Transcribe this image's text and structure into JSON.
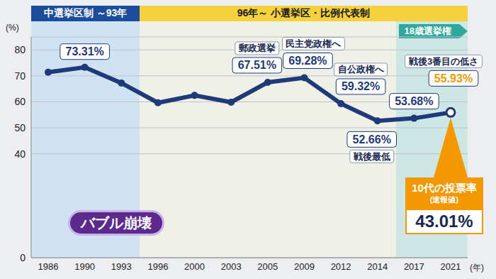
{
  "chart_data": {
    "type": "line",
    "categories": [
      "1986",
      "1990",
      "1993",
      "1996",
      "2000",
      "2003",
      "2005",
      "2009",
      "2012",
      "2014",
      "2017",
      "2021"
    ],
    "values": [
      71.4,
      73.31,
      67.26,
      59.65,
      62.49,
      59.86,
      67.51,
      69.28,
      59.32,
      52.66,
      53.68,
      55.93
    ],
    "value_labels": [
      null,
      "73.31%",
      null,
      null,
      null,
      null,
      "67.51%",
      "69.28%",
      "59.32%",
      "52.66%",
      "53.68%",
      "55.93%"
    ],
    "data_labels": true,
    "ylim": [
      0,
      85
    ],
    "yticks": [
      0,
      40,
      50,
      60,
      70,
      80
    ],
    "y_label": "(%)",
    "x_label": "(年)",
    "grid": true,
    "color": "#1f3a78",
    "marker": "circle",
    "annotations": [
      {
        "category": "2005",
        "text": "郵政選挙"
      },
      {
        "category": "2009",
        "text": "民主党政権へ"
      },
      {
        "category": "2012",
        "text": "自公政権へ"
      },
      {
        "category": "2014",
        "text": "戦後最低"
      },
      {
        "category": "2021",
        "text": "戦後3番目の低さ"
      }
    ],
    "periods": [
      {
        "text": "中選挙区制 ～93年",
        "from": "1986",
        "to": "1993"
      },
      {
        "text": "96年～ 小選挙区・比例代表制",
        "from": "1996",
        "to": "2021"
      },
      {
        "text": "18歳選挙権",
        "from": "2017",
        "to": "2021"
      }
    ],
    "event": "バブル崩壊",
    "callout": {
      "category": "2021",
      "title": "10代の投票率",
      "note": "(速報値)",
      "label": "43.01%"
    }
  }
}
